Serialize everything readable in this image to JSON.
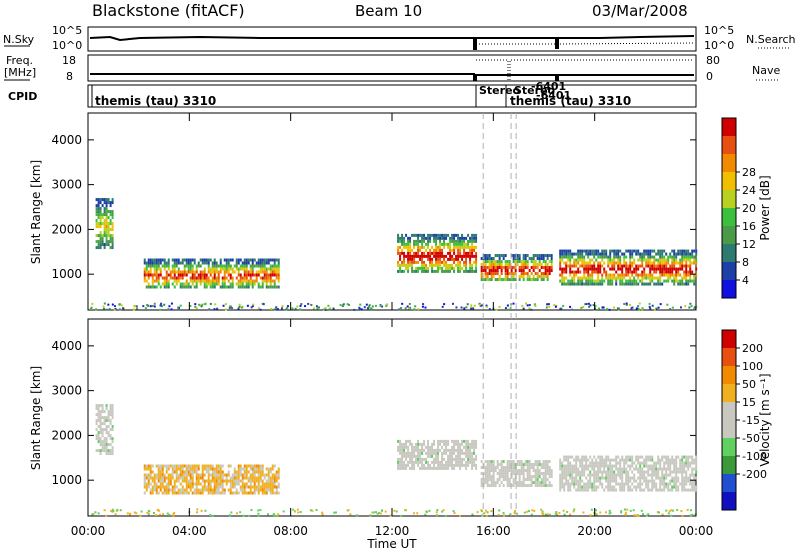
{
  "header": {
    "station": "Blackstone (fitACF)",
    "beam": "Beam 10",
    "date": "03/Mar/2008"
  },
  "panels": {
    "nsky": {
      "left_label": "N.Sky",
      "left_ticks": [
        "10^5",
        "10^0"
      ],
      "right_label": "N.Search",
      "right_ticks": [
        "10^5",
        "10^0"
      ]
    },
    "freq": {
      "left_label_line1": "Freq.",
      "left_label_line2": "[MHz]",
      "left_ticks": [
        "18",
        "8"
      ],
      "right_label": "Nave",
      "right_ticks": [
        "80",
        "0"
      ]
    },
    "cpid": {
      "label": "CPID",
      "labels": [
        "themis (tau) 3310",
        "Stereo",
        "Stereo",
        "-6401",
        "-6401",
        "themis (tau) 3310"
      ]
    }
  },
  "colors": {
    "background": "#ffffff",
    "axis": "#000000",
    "ground_scatter": "#c8c8c0",
    "dashed_marker": "#b0b0b0"
  },
  "chart_data": [
    {
      "type": "heatmap",
      "name": "power-panel",
      "ylabel": "Slant Range [km]",
      "ylim": [
        200,
        4600
      ],
      "yticks": [
        1000,
        2000,
        3000,
        4000
      ],
      "xlim": [
        0,
        24
      ],
      "xticks": [
        "00:00",
        "04:00",
        "08:00",
        "12:00",
        "16:00",
        "20:00",
        "00:00"
      ],
      "colorbar": {
        "label": "Power [dB]",
        "ticks": [
          "4",
          "8",
          "12",
          "16",
          "20",
          "24",
          "28"
        ],
        "colors": [
          "#1010e0",
          "#1d3fa8",
          "#2e7a6e",
          "#4a9a4a",
          "#3cbf3c",
          "#b8d020",
          "#f0c000",
          "#f08a00",
          "#e85010",
          "#d00000"
        ]
      },
      "regions": [
        {
          "t0": 0.3,
          "t1": 1.0,
          "r0": 1600,
          "r1": 2700,
          "level": 2
        },
        {
          "t0": 2.2,
          "t1": 7.5,
          "r0": 700,
          "r1": 1350,
          "level": 5
        },
        {
          "t0": 12.2,
          "t1": 15.3,
          "r0": 1050,
          "r1": 1900,
          "level": 6
        },
        {
          "t0": 15.5,
          "t1": 18.3,
          "r0": 850,
          "r1": 1450,
          "level": 6
        },
        {
          "t0": 18.6,
          "t1": 24.0,
          "r0": 800,
          "r1": 1550,
          "level": 6
        }
      ]
    },
    {
      "type": "heatmap",
      "name": "velocity-panel",
      "ylabel": "Slant Range [km]",
      "xlabel": "Time UT",
      "ylim": [
        200,
        4600
      ],
      "yticks": [
        1000,
        2000,
        3000,
        4000
      ],
      "xlim": [
        0,
        24
      ],
      "xticks": [
        "00:00",
        "04:00",
        "08:00",
        "12:00",
        "16:00",
        "20:00",
        "00:00"
      ],
      "colorbar": {
        "label": "Velocity [m s⁻¹]",
        "ticks": [
          "200",
          "100",
          "50",
          "15",
          "-15",
          "-50",
          "-100",
          "-200"
        ],
        "colors": [
          "#1010c0",
          "#2050d0",
          "#3a9a3a",
          "#60d060",
          "#c8c8c0",
          "#c8c8c0",
          "#f0b020",
          "#f08a00",
          "#e85010",
          "#d00000"
        ]
      },
      "regions": [
        {
          "t0": 0.3,
          "t1": 1.0,
          "r0": 1600,
          "r1": 2700,
          "color": "ground"
        },
        {
          "t0": 2.2,
          "t1": 7.5,
          "r0": 700,
          "r1": 1350,
          "color": "orange"
        },
        {
          "t0": 12.2,
          "t1": 15.3,
          "r0": 1250,
          "r1": 1900,
          "color": "ground"
        },
        {
          "t0": 15.5,
          "t1": 18.3,
          "r0": 850,
          "r1": 1450,
          "color": "ground"
        },
        {
          "t0": 18.6,
          "t1": 24.0,
          "r0": 800,
          "r1": 1550,
          "color": "ground"
        }
      ]
    }
  ]
}
